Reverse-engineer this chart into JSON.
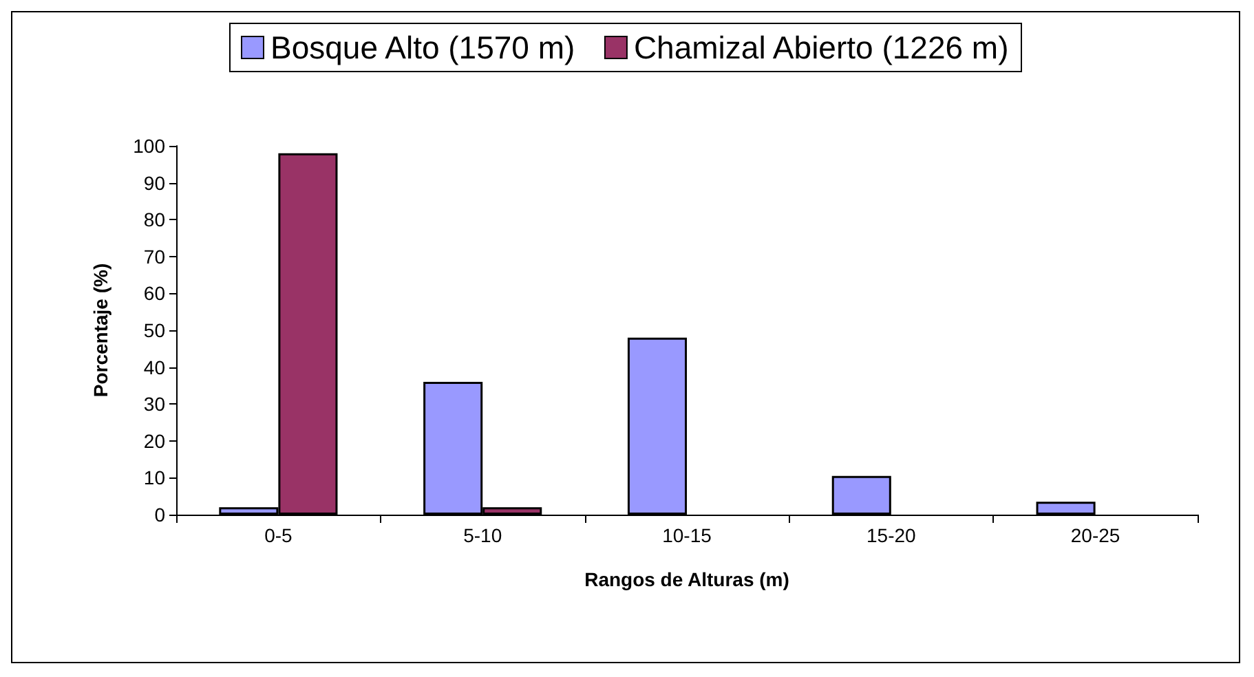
{
  "chart_data": {
    "type": "bar",
    "xlabel": "Rangos de Alturas (m)",
    "ylabel": "Porcentaje (%)",
    "categories": [
      "0-5",
      "5-10",
      "10-15",
      "15-20",
      "20-25"
    ],
    "series": [
      {
        "name": "Bosque Alto (1570 m)",
        "color": "#9999ff",
        "values": [
          2,
          36,
          48,
          10.5,
          3.5
        ]
      },
      {
        "name": "Chamizal Abierto (1226 m)",
        "color": "#993366",
        "values": [
          98,
          2,
          0,
          0,
          0
        ]
      }
    ],
    "ylim": [
      0,
      100
    ],
    "yticks": [
      0,
      10,
      20,
      30,
      40,
      50,
      60,
      70,
      80,
      90,
      100
    ],
    "grid": false,
    "legend": "top"
  }
}
